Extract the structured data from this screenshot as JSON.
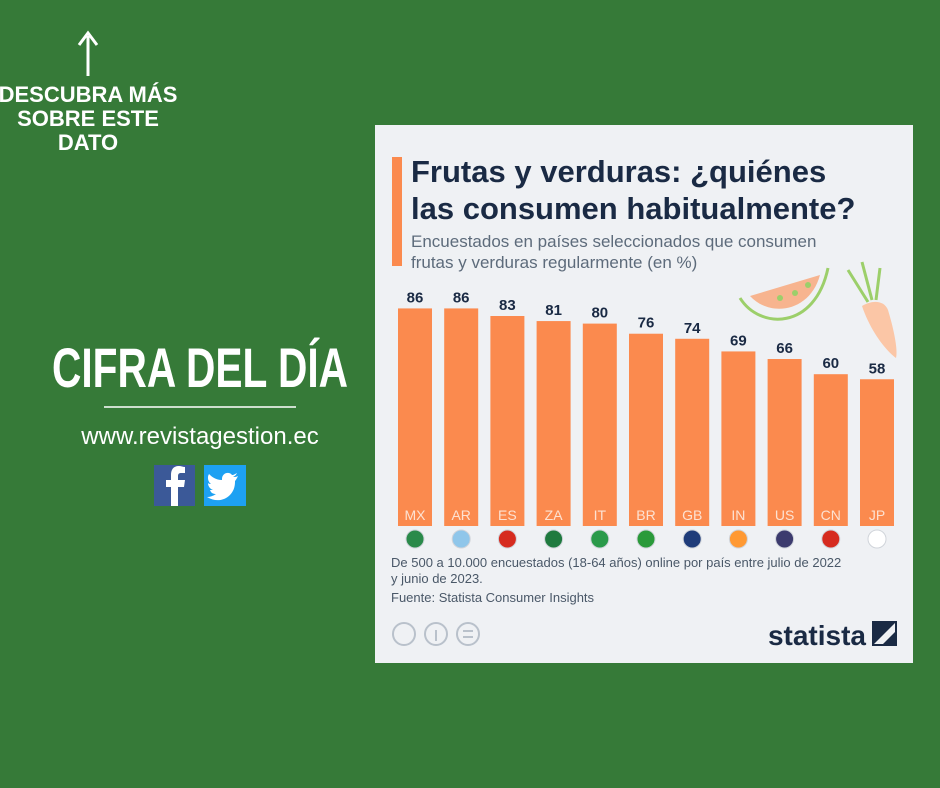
{
  "promo": {
    "link_lines": [
      "DESCUBRA MÁS",
      "SOBRE ESTE",
      "DATO"
    ],
    "heading": "CIFRA DEL DÍA",
    "website": "www.revistagestion.ec"
  },
  "chart_data": {
    "type": "bar",
    "title_lines": [
      "Frutas y verduras: ¿quiénes",
      "las consumen habitualmente?"
    ],
    "subtitle_lines": [
      "Encuestados en países seleccionados que consumen",
      "frutas y verduras regularmente (en %)"
    ],
    "categories": [
      "MX",
      "AR",
      "ES",
      "ZA",
      "IT",
      "BR",
      "GB",
      "IN",
      "US",
      "CN",
      "JP"
    ],
    "values": [
      86,
      86,
      83,
      81,
      80,
      76,
      74,
      69,
      66,
      60,
      58
    ],
    "color": "#fb8a4e",
    "note_lines": [
      "De 500 a 10.000 encuestados (18-64 años) online por país entre julio de 2022",
      "y junio de 2023."
    ],
    "source": "Fuente: Statista Consumer Insights",
    "brand": "statista"
  }
}
